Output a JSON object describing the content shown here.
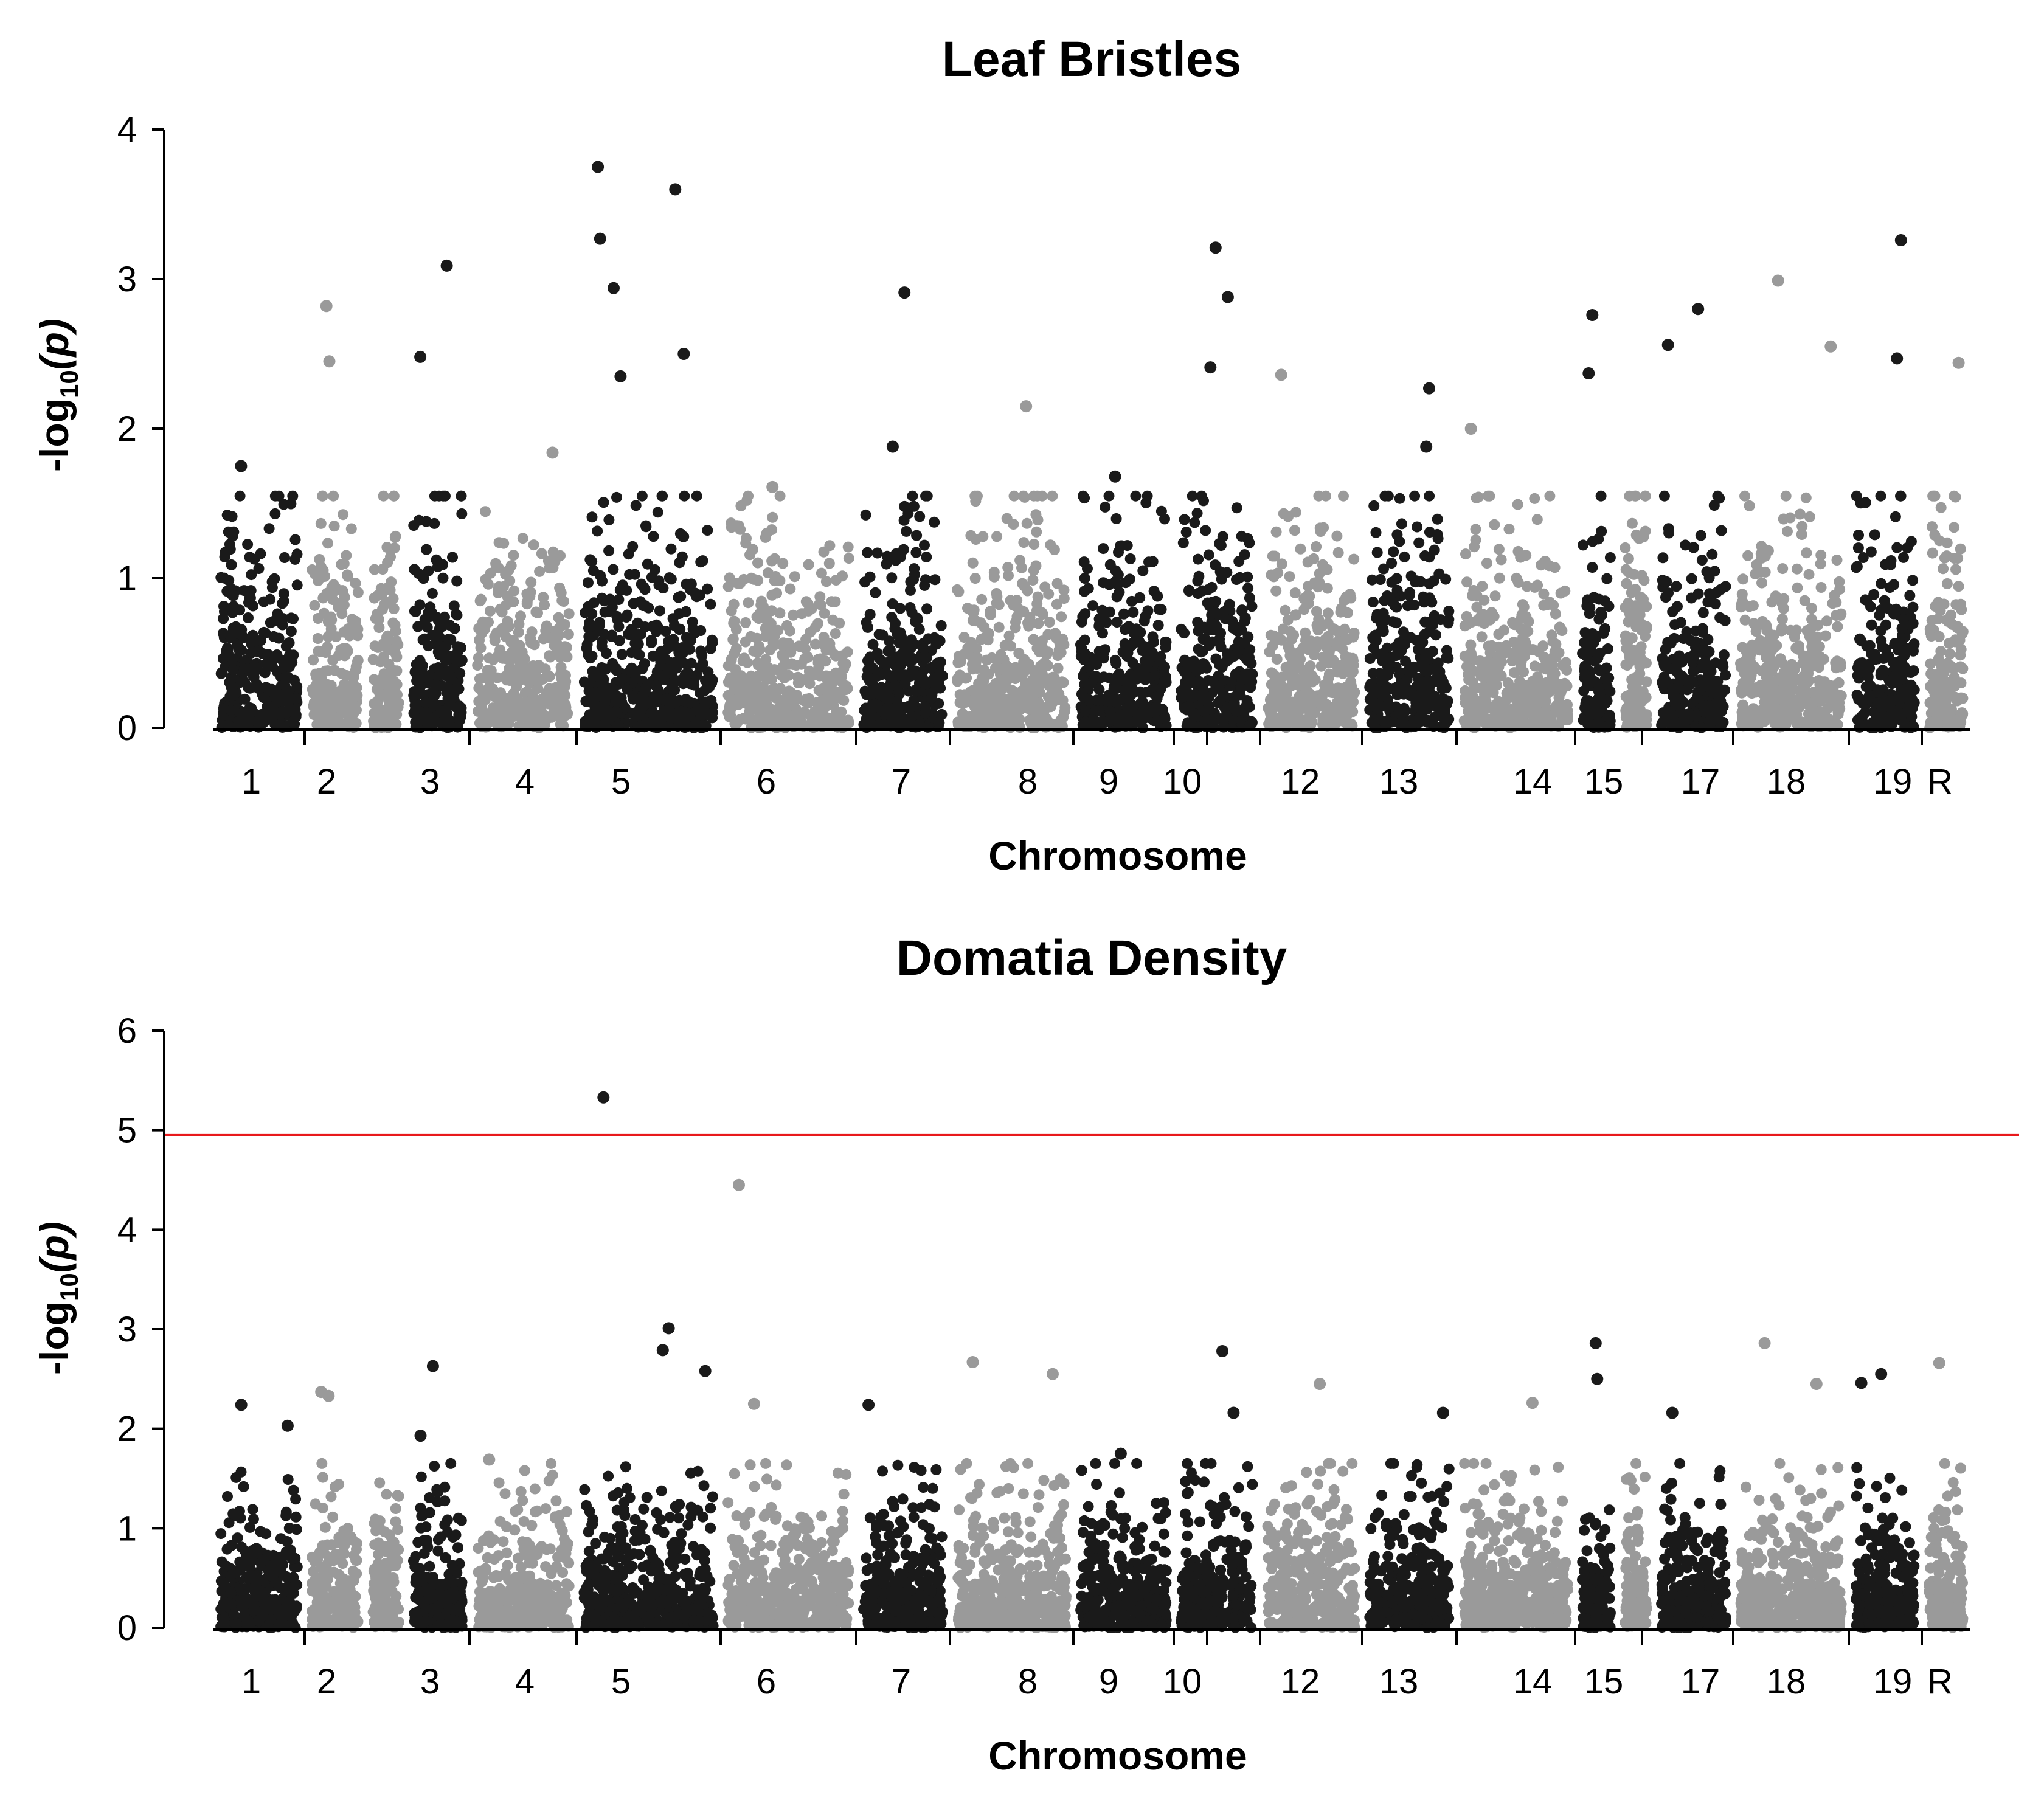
{
  "colors": {
    "dark": "#1a1a1a",
    "light": "#9a9a9a",
    "threshold": "#e8191c"
  },
  "chart_data": [
    {
      "type": "scatter",
      "subtype": "manhattan",
      "title": "Leaf Bristles",
      "xlabel": "Chromosome",
      "ylabel_prefix": "-log",
      "ylabel_sub": "10",
      "ylabel_suffix": "(p)",
      "ylim": [
        0,
        4
      ],
      "yticks": [
        "0",
        "1",
        "2",
        "3",
        "4"
      ],
      "chromosome_labels": [
        "1",
        "2",
        "3",
        "4",
        "5",
        "6",
        "7",
        "8",
        "9",
        "10",
        "12",
        "13",
        "14",
        "15",
        "17",
        "18",
        "19",
        "R"
      ],
      "threshold": null,
      "notable_points": [
        {
          "chromosome": "1",
          "p": 1.75
        },
        {
          "chromosome": "2",
          "p": 2.82
        },
        {
          "chromosome": "2",
          "p": 2.45
        },
        {
          "chromosome": "3",
          "p": 2.48
        },
        {
          "chromosome": "3",
          "p": 3.09
        },
        {
          "chromosome": "4",
          "p": 1.84
        },
        {
          "chromosome": "5",
          "p": 3.75
        },
        {
          "chromosome": "5",
          "p": 3.6
        },
        {
          "chromosome": "5",
          "p": 3.27
        },
        {
          "chromosome": "5",
          "p": 2.94
        },
        {
          "chromosome": "5",
          "p": 2.5
        },
        {
          "chromosome": "5",
          "p": 2.35
        },
        {
          "chromosome": "6",
          "p": 1.61
        },
        {
          "chromosome": "7",
          "p": 1.88
        },
        {
          "chromosome": "7",
          "p": 2.91
        },
        {
          "chromosome": "8",
          "p": 2.15
        },
        {
          "chromosome": "9",
          "p": 1.68
        },
        {
          "chromosome": "10",
          "p": 3.21
        },
        {
          "chromosome": "10",
          "p": 2.88
        },
        {
          "chromosome": "10",
          "p": 2.41
        },
        {
          "chromosome": "12",
          "p": 2.36
        },
        {
          "chromosome": "13",
          "p": 1.88
        },
        {
          "chromosome": "13",
          "p": 2.27
        },
        {
          "chromosome": "14",
          "p": 2.0
        },
        {
          "chromosome": "15",
          "p": 2.76
        },
        {
          "chromosome": "15",
          "p": 2.37
        },
        {
          "chromosome": "17",
          "p": 2.8
        },
        {
          "chromosome": "17",
          "p": 2.56
        },
        {
          "chromosome": "18",
          "p": 2.99
        },
        {
          "chromosome": "18",
          "p": 2.55
        },
        {
          "chromosome": "19",
          "p": 3.26
        },
        {
          "chromosome": "19",
          "p": 2.47
        },
        {
          "chromosome": "R",
          "p": 2.44
        }
      ]
    },
    {
      "type": "scatter",
      "subtype": "manhattan",
      "title": "Domatia Density",
      "xlabel": "Chromosome",
      "ylabel_prefix": "-log",
      "ylabel_sub": "10",
      "ylabel_suffix": "(p)",
      "ylim": [
        0,
        6
      ],
      "yticks": [
        "0",
        "1",
        "2",
        "3",
        "4",
        "5",
        "6"
      ],
      "chromosome_labels": [
        "1",
        "2",
        "3",
        "4",
        "5",
        "6",
        "7",
        "8",
        "9",
        "10",
        "12",
        "13",
        "14",
        "15",
        "17",
        "18",
        "19",
        "R"
      ],
      "threshold": 4.95,
      "notable_points": [
        {
          "chromosome": "1",
          "p": 2.24
        },
        {
          "chromosome": "1",
          "p": 2.03
        },
        {
          "chromosome": "2",
          "p": 2.37
        },
        {
          "chromosome": "2",
          "p": 2.33
        },
        {
          "chromosome": "3",
          "p": 2.63
        },
        {
          "chromosome": "3",
          "p": 1.93
        },
        {
          "chromosome": "4",
          "p": 1.69
        },
        {
          "chromosome": "5",
          "p": 5.33
        },
        {
          "chromosome": "5",
          "p": 3.01
        },
        {
          "chromosome": "5",
          "p": 2.79
        },
        {
          "chromosome": "5",
          "p": 2.58
        },
        {
          "chromosome": "6",
          "p": 4.45
        },
        {
          "chromosome": "6",
          "p": 2.25
        },
        {
          "chromosome": "7",
          "p": 2.24
        },
        {
          "chromosome": "8",
          "p": 2.67
        },
        {
          "chromosome": "8",
          "p": 2.55
        },
        {
          "chromosome": "9",
          "p": 1.75
        },
        {
          "chromosome": "10",
          "p": 2.78
        },
        {
          "chromosome": "10",
          "p": 2.16
        },
        {
          "chromosome": "12",
          "p": 2.45
        },
        {
          "chromosome": "13",
          "p": 2.16
        },
        {
          "chromosome": "14",
          "p": 2.26
        },
        {
          "chromosome": "15",
          "p": 2.86
        },
        {
          "chromosome": "15",
          "p": 2.5
        },
        {
          "chromosome": "17",
          "p": 2.16
        },
        {
          "chromosome": "18",
          "p": 2.86
        },
        {
          "chromosome": "18",
          "p": 2.45
        },
        {
          "chromosome": "19",
          "p": 2.55
        },
        {
          "chromosome": "19",
          "p": 2.46
        },
        {
          "chromosome": "R",
          "p": 2.66
        }
      ]
    }
  ]
}
